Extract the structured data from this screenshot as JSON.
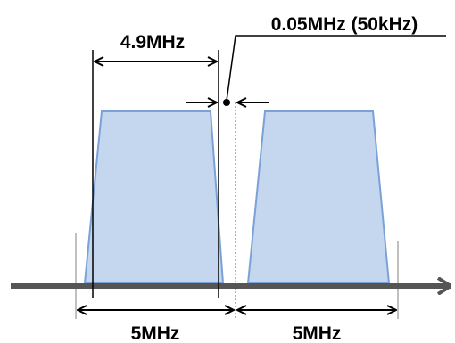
{
  "labels": {
    "bandwidth": "4.9MHz",
    "guard": "0.05MHz (50kHz)",
    "channel_left": "5MHz",
    "channel_right": "5MHz"
  },
  "colors": {
    "band_fill": "#c5d6ef",
    "band_stroke": "#7aa2d6",
    "axis": "#555555",
    "line": "#000000",
    "center_dotted": "#808080"
  }
}
